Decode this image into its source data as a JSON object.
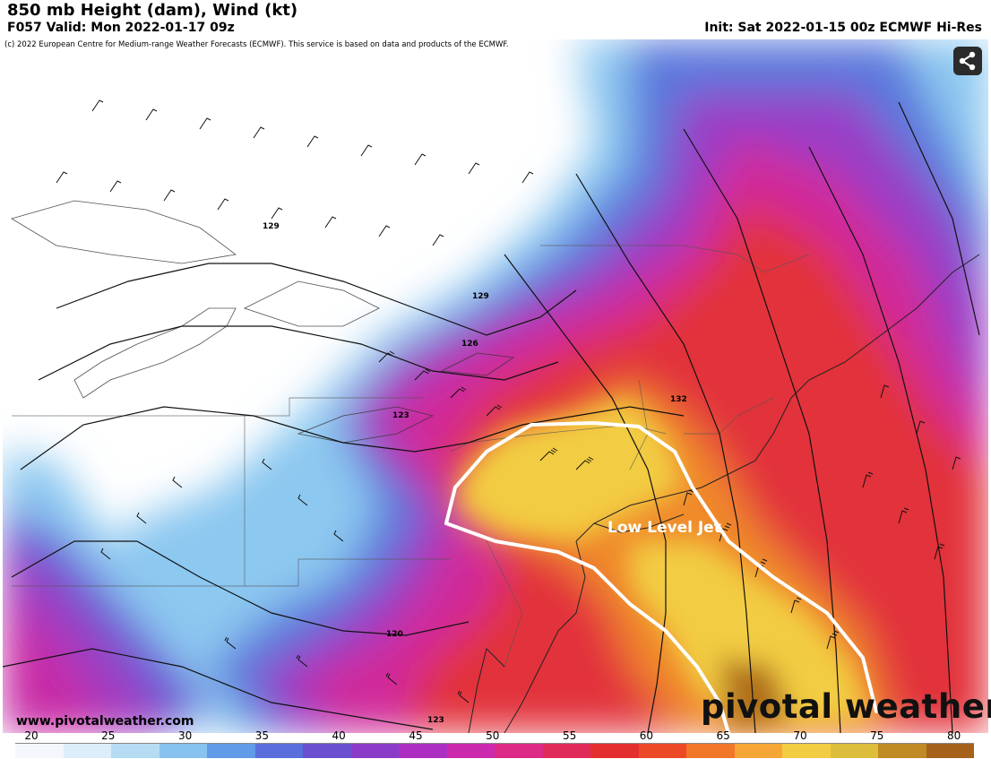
{
  "header": {
    "title": "850 mb Height (dam), Wind (kt)",
    "valid": "F057 Valid: Mon 2022-01-17 09z",
    "init": "Init: Sat 2022-01-15 00z ECMWF Hi-Res"
  },
  "copyright": "(c) 2022 European Centre for Medium-range Weather Forecasts (ECMWF). This service is based on data and products of the ECMWF.",
  "annotation": {
    "jet_label": "Low Level Jet"
  },
  "contours": [
    {
      "label": "129"
    },
    {
      "label": "129"
    },
    {
      "label": "126"
    },
    {
      "label": "123"
    },
    {
      "label": "132"
    },
    {
      "label": "120"
    },
    {
      "label": "123"
    }
  ],
  "footer": {
    "website": "www.pivotalweather.com",
    "logo": "pivotal weather"
  },
  "colorbar": {
    "labels": [
      "20",
      "25",
      "30",
      "35",
      "40",
      "45",
      "50",
      "55",
      "60",
      "65",
      "70",
      "75",
      "80"
    ],
    "colors": [
      "#f4f8fc",
      "#dceefa",
      "#b6dcf4",
      "#88c2ee",
      "#5f9be6",
      "#5a6fdc",
      "#6a4fd0",
      "#8a3cc8",
      "#ad2fc2",
      "#cc2aae",
      "#dc2a86",
      "#e02a5a",
      "#e3302e",
      "#ec4a26",
      "#f2762a",
      "#f6a636",
      "#f2cc42",
      "#ddbe3c",
      "#c08a26",
      "#a6621a"
    ]
  },
  "icons": {
    "share": "share-icon"
  }
}
